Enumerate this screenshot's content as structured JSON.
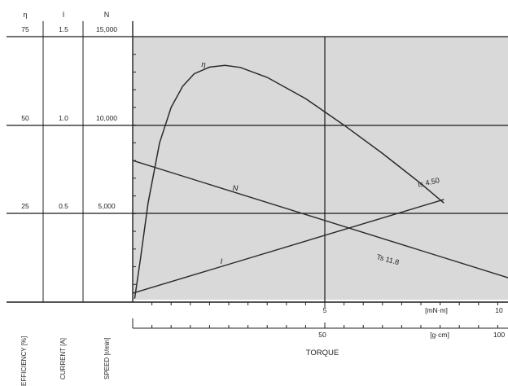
{
  "chart_data": {
    "type": "line",
    "xlabel": "TORQUE",
    "x_axis_mN": {
      "unit": "[mN·m]",
      "ticks": [
        "5",
        "10"
      ],
      "range": [
        0,
        10
      ]
    },
    "x_axis_gcm": {
      "unit": "[g·cm]",
      "ticks": [
        "50",
        "100"
      ],
      "range": [
        0,
        100
      ]
    },
    "y_axes": [
      {
        "name": "efficiency",
        "header": "η",
        "label": "EFFICIENCY [%]",
        "ticks": [
          "25",
          "50",
          "75"
        ],
        "range": [
          0,
          75
        ]
      },
      {
        "name": "current",
        "header": "I",
        "label": "CURRENT [A]",
        "ticks": [
          "0.5",
          "1.0",
          "1.5"
        ],
        "range": [
          0,
          1.5
        ]
      },
      {
        "name": "speed",
        "header": "N",
        "label": "SPEED [r/min]",
        "ticks": [
          "5,000",
          "10,000",
          "15,000"
        ],
        "range": [
          0,
          15000
        ]
      }
    ],
    "series": [
      {
        "name": "η",
        "axis": "efficiency",
        "x": [
          0.05,
          0.2,
          0.4,
          0.7,
          1.0,
          1.3,
          1.6,
          2.0,
          2.4,
          2.8,
          3.5,
          4.5,
          5.5,
          6.5,
          7.5,
          8.1
        ],
        "values": [
          1,
          12,
          28,
          45,
          55,
          61,
          64.5,
          66.4,
          66.9,
          66.3,
          63.5,
          57.5,
          50,
          42,
          33.5,
          28
        ]
      },
      {
        "name": "N",
        "axis": "speed",
        "x": [
          0,
          11.8
        ],
        "values": [
          8000,
          0
        ]
      },
      {
        "name": "I",
        "axis": "current",
        "x": [
          0,
          8.1
        ],
        "values": [
          0.05,
          0.58
        ]
      }
    ],
    "annotations": {
      "stall_current": "Is 4.50",
      "stall_torque": "Ts 11.8"
    },
    "colors": {
      "plot_bg": "#d9d9d9",
      "line": "#2a2a2a",
      "grid": "#1a1a1a"
    }
  }
}
